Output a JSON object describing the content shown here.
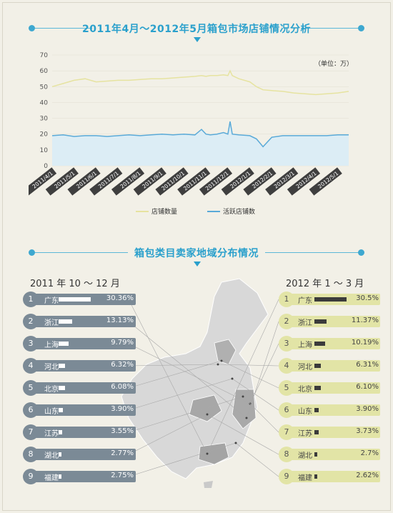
{
  "chart_title": "2011年4月～2012年5月箱包市场店铺情况分析",
  "map_title": "箱包类目卖家地域分布情况",
  "chart_data": [
    {
      "type": "line",
      "title": "2011年4月～2012年5月箱包市场店铺情况分析",
      "unit_label": "（单位：万）",
      "ylim": [
        0,
        70
      ],
      "yticks": [
        0,
        10,
        20,
        30,
        40,
        50,
        60,
        70
      ],
      "x_ticks": [
        "2011/4/1",
        "2011/5/1",
        "2011/6/1",
        "2011/7/1",
        "2011/8/1",
        "2011/9/1",
        "2011/10/1",
        "2011/11/1",
        "2011/12/1",
        "2012/1/1",
        "2012/2/1",
        "2012/3/1",
        "2012/4/1",
        "2012/5/1"
      ],
      "x": [
        0,
        0.5,
        1,
        1.5,
        2,
        2.5,
        3,
        3.5,
        4,
        4.5,
        5,
        5.5,
        6,
        6.5,
        6.8,
        7,
        7.2,
        7.5,
        7.8,
        8,
        8.1,
        8.2,
        8.5,
        9,
        9.3,
        9.6,
        10,
        10.5,
        11,
        11.5,
        12,
        12.5,
        13,
        13.5
      ],
      "x_is_month_index_from": "2011/4/1",
      "series": [
        {
          "name": "店铺数量",
          "color": "#e6e3a0",
          "values": [
            50,
            52,
            54,
            55,
            53,
            53.5,
            54,
            54,
            54.5,
            55,
            55,
            55.5,
            56,
            56.5,
            57,
            56.5,
            57,
            57,
            57.5,
            57,
            60,
            57,
            55,
            53,
            50,
            48,
            47.5,
            47,
            46,
            45.5,
            45,
            45.5,
            46,
            47
          ]
        },
        {
          "name": "活跃店铺数",
          "color": "#5aaad8",
          "fill": "#dcedf5",
          "values": [
            19,
            19.5,
            18.5,
            19,
            19,
            18.5,
            19,
            19.5,
            19,
            19.5,
            20,
            19.5,
            20,
            19.5,
            23,
            20,
            19.5,
            20,
            21,
            20,
            28,
            20,
            19.5,
            19,
            17,
            12,
            18,
            19,
            19,
            19,
            19,
            19,
            19.5,
            19.5
          ]
        }
      ],
      "legend_position": "bottom"
    },
    {
      "type": "table",
      "title": "2011 年 10 ～ 12 月",
      "rows": [
        {
          "rank": "1",
          "province": "广东",
          "value": "30.36%",
          "share": 30.36
        },
        {
          "rank": "2",
          "province": "浙江",
          "value": "13.13%",
          "share": 13.13
        },
        {
          "rank": "3",
          "province": "上海",
          "value": "9.79%",
          "share": 9.79
        },
        {
          "rank": "4",
          "province": "河北",
          "value": "6.32%",
          "share": 6.32
        },
        {
          "rank": "5",
          "province": "北京",
          "value": "6.08%",
          "share": 6.08
        },
        {
          "rank": "6",
          "province": "山东",
          "value": "3.90%",
          "share": 3.9
        },
        {
          "rank": "7",
          "province": "江苏",
          "value": "3.55%",
          "share": 3.55
        },
        {
          "rank": "8",
          "province": "湖北",
          "value": "2.77%",
          "share": 2.77
        },
        {
          "rank": "9",
          "province": "福建",
          "value": "2.75%",
          "share": 2.75
        }
      ]
    },
    {
      "type": "table",
      "title": "2012 年 1 ～ 3 月",
      "rows": [
        {
          "rank": "1",
          "province": "广东",
          "value": "30.5%",
          "share": 30.5
        },
        {
          "rank": "2",
          "province": "浙江",
          "value": "11.37%",
          "share": 11.37
        },
        {
          "rank": "3",
          "province": "上海",
          "value": "10.19%",
          "share": 10.19
        },
        {
          "rank": "4",
          "province": "河北",
          "value": "6.31%",
          "share": 6.31
        },
        {
          "rank": "5",
          "province": "北京",
          "value": "6.10%",
          "share": 6.1
        },
        {
          "rank": "6",
          "province": "山东",
          "value": "3.90%",
          "share": 3.9
        },
        {
          "rank": "7",
          "province": "江苏",
          "value": "3.73%",
          "share": 3.73
        },
        {
          "rank": "8",
          "province": "湖北",
          "value": "2.7%",
          "share": 2.7
        },
        {
          "rank": "9",
          "province": "福建",
          "value": "2.62%",
          "share": 2.62
        }
      ]
    }
  ]
}
